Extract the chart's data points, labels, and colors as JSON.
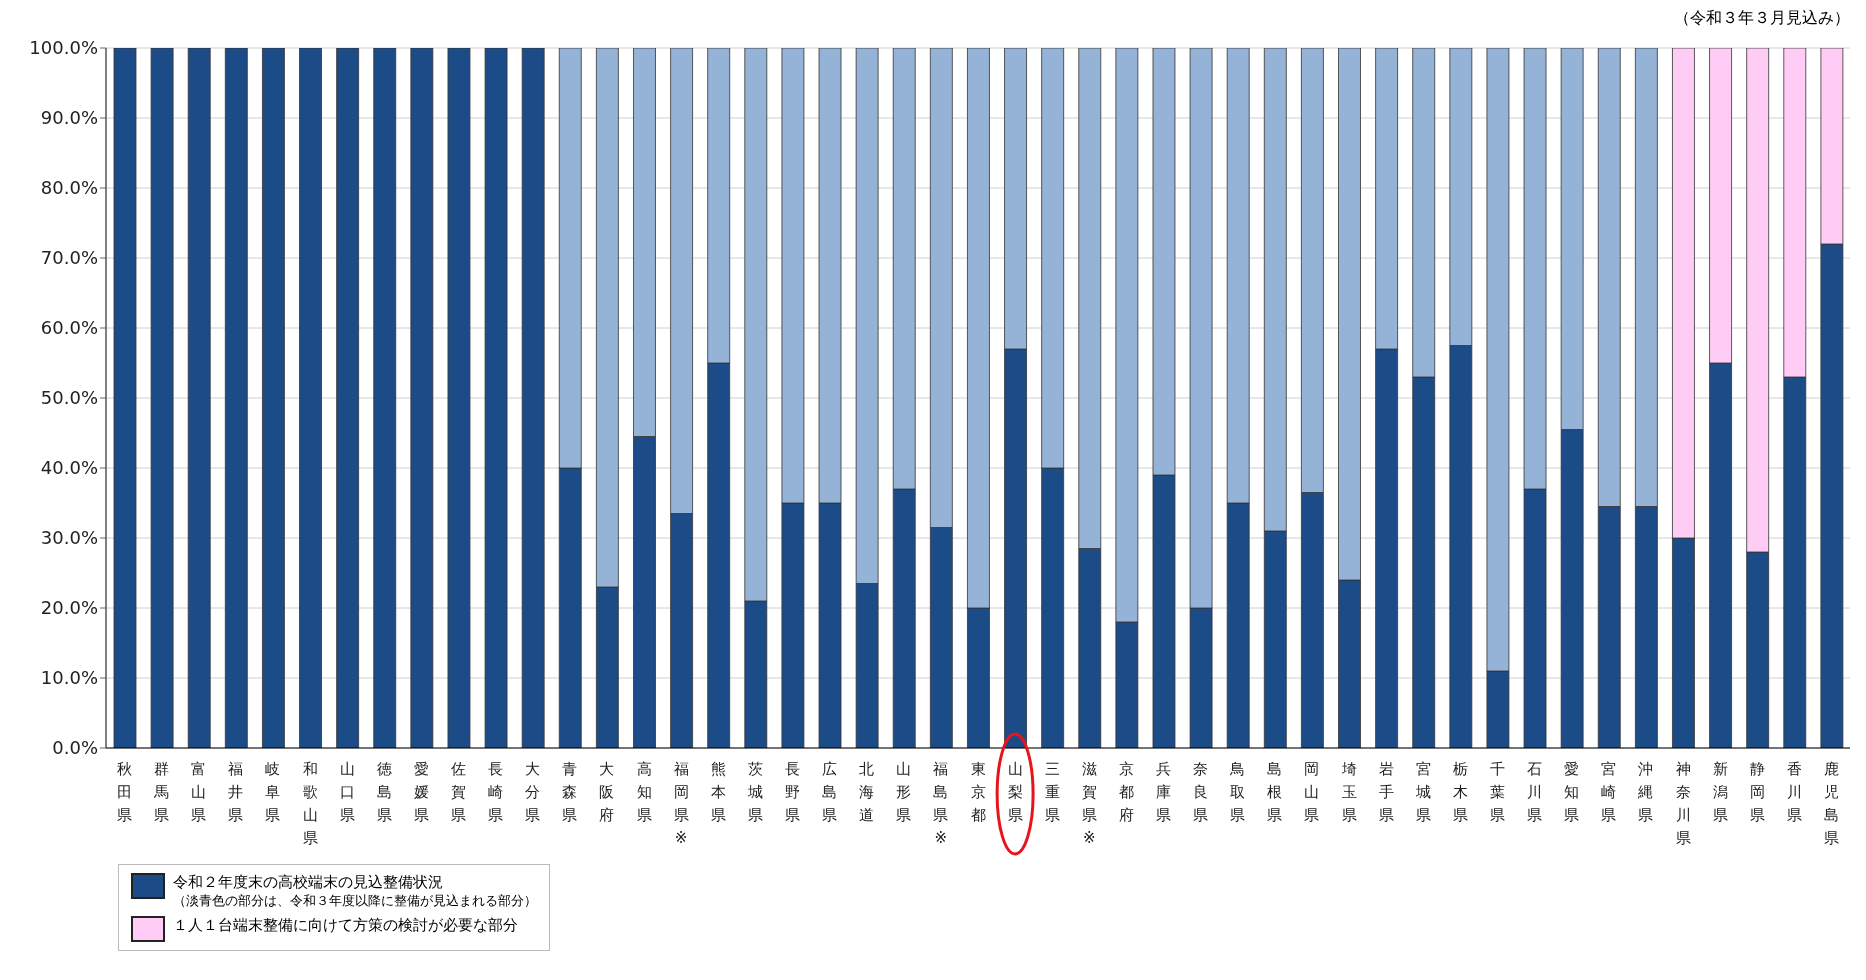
{
  "chart_data": {
    "type": "bar",
    "stacked": true,
    "categories": [
      "秋田県",
      "群馬県",
      "富山県",
      "福井県",
      "岐阜県",
      "和歌山県",
      "山口県",
      "徳島県",
      "愛媛県",
      "佐賀県",
      "長崎県",
      "大分県",
      "青森県",
      "大阪府",
      "高知県",
      "福岡県※",
      "熊本県",
      "茨城県",
      "長野県",
      "広島県",
      "北海道",
      "山形県",
      "福島県※",
      "東京都",
      "山梨県",
      "三重県",
      "滋賀県※",
      "京都府",
      "兵庫県",
      "奈良県",
      "鳥取県",
      "島根県",
      "岡山県",
      "埼玉県",
      "岩手県",
      "宮城県",
      "栃木県",
      "千葉県",
      "石川県",
      "愛知県",
      "宮崎県",
      "沖縄県",
      "神奈川県",
      "新潟県",
      "静岡県",
      "香川県",
      "鹿児島県"
    ],
    "series": [
      {
        "name": "令和２年度末の高校端末の見込整備状況",
        "color": "#1c4c88",
        "values": [
          100,
          100,
          100,
          100,
          100,
          100,
          100,
          100,
          100,
          100,
          100,
          100,
          40,
          23,
          44.5,
          33.5,
          55,
          21,
          35,
          35,
          23.5,
          37,
          31.5,
          20,
          57,
          40,
          28.5,
          18,
          39,
          20,
          35,
          31,
          36.5,
          24,
          57,
          53,
          57.5,
          11,
          37,
          45.5,
          34.5,
          34.5,
          30,
          55,
          28,
          53,
          72
        ]
      },
      {
        "color": "#95b3d7",
        "values": [
          null,
          null,
          null,
          null,
          null,
          null,
          null,
          null,
          null,
          null,
          null,
          null,
          60,
          77,
          55.5,
          66.5,
          45,
          79,
          65,
          65,
          76.5,
          63,
          68.5,
          80,
          43,
          60,
          71.5,
          82,
          61,
          80,
          65,
          69,
          63.5,
          76,
          43,
          47,
          42.5,
          89,
          63,
          54.5,
          65.5,
          65.5,
          null,
          null,
          null,
          null,
          null
        ]
      },
      {
        "name": "１人１台端末整備に向けて方策の検討が必要な部分",
        "color": "#ffccf5",
        "values": [
          null,
          null,
          null,
          null,
          null,
          null,
          null,
          null,
          null,
          null,
          null,
          null,
          null,
          null,
          null,
          null,
          null,
          null,
          null,
          null,
          null,
          null,
          null,
          null,
          null,
          null,
          null,
          null,
          null,
          null,
          null,
          null,
          null,
          null,
          null,
          null,
          null,
          null,
          null,
          null,
          null,
          null,
          70,
          45,
          72,
          47,
          28
        ]
      }
    ],
    "ylim": [
      0,
      100
    ],
    "yticks": [
      {
        "value": 0,
        "label": "0.0%"
      },
      {
        "value": 10,
        "label": "10.0%"
      },
      {
        "value": 20,
        "label": "20.0%"
      },
      {
        "value": 30,
        "label": "30.0%"
      },
      {
        "value": 40,
        "label": "40.0%"
      },
      {
        "value": 50,
        "label": "50.0%"
      },
      {
        "value": 60,
        "label": "60.0%"
      },
      {
        "value": 70,
        "label": "70.0%"
      },
      {
        "value": 80,
        "label": "80.0%"
      },
      {
        "value": 90,
        "label": "90.0%"
      },
      {
        "value": 100,
        "label": "100.0%"
      }
    ],
    "grid": "y",
    "legend": "bottom left",
    "annotations": [
      "（令和３年３月見込み）",
      "（淡青色の部分は、令和３年度以降に整備が見込まれる部分）"
    ]
  }
}
